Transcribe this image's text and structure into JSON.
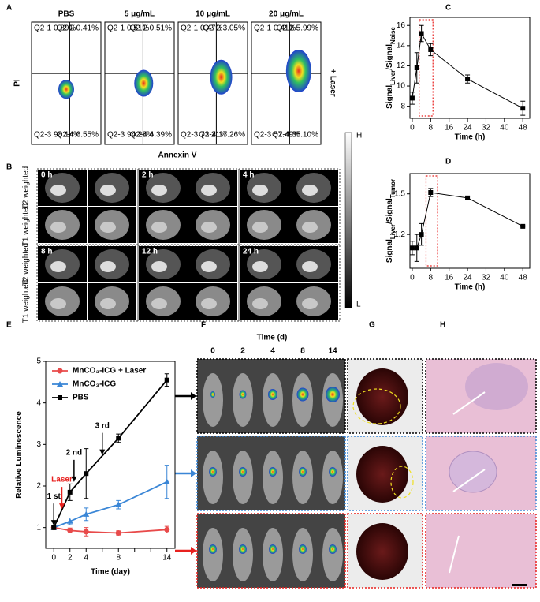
{
  "panel_labels": [
    "A",
    "B",
    "C",
    "D",
    "E",
    "F",
    "G",
    "H"
  ],
  "flow": {
    "groups": [
      {
        "name": "PBS",
        "quadrants": [
          "Q2-1 0.89%",
          "Q2-2 0.41%",
          "Q2-3 98.14%",
          "Q2-4 0.55%"
        ]
      },
      {
        "name": "5 μg/mL",
        "quadrants": [
          "Q2-1 0.51%",
          "Q2-2 0.51%",
          "Q2-3 94.28%",
          "Q2-4 4.39%"
        ]
      },
      {
        "name": "10 μg/mL",
        "quadrants": [
          "Q2-1 0.47%",
          "Q2-2 3.05%",
          "Q2-3 73.21%",
          "Q2-4 17.26%"
        ]
      },
      {
        "name": "20 μg/mL",
        "quadrants": [
          "Q2-1 0.41%",
          "Q2-2 5.99%",
          "Q2-3 57.49%",
          "Q2-4 35.10%"
        ]
      }
    ],
    "ylabel": "PI",
    "xlabel": "Annexin V",
    "side_label": "+ Laser"
  },
  "mri": {
    "rows": [
      "T2 weighted",
      "T1 weighted"
    ],
    "times": [
      "0 h",
      "2 h",
      "4 h",
      "8 h",
      "12 h",
      "24 h"
    ],
    "scale_high": "H",
    "scale_low": "L"
  },
  "bioluminescence": {
    "title": "Time (d)",
    "days": [
      "0",
      "2",
      "4",
      "8",
      "14"
    ]
  },
  "chart_data": [
    {
      "type": "line",
      "ylabel": [
        "Signal",
        "Liver",
        "/Signal",
        "Noise"
      ],
      "xlabel": "Time (h)",
      "x": [
        0,
        2,
        4,
        8,
        24,
        48
      ],
      "series": [
        {
          "color": "#000000",
          "marker": "square",
          "values": [
            8.8,
            11.8,
            15.2,
            13.6,
            10.7,
            7.8
          ],
          "errors": [
            0.6,
            1.5,
            0.8,
            0.6,
            0.4,
            0.7
          ]
        }
      ],
      "xlim": [
        -1,
        51
      ],
      "xticks": [
        0,
        8,
        16,
        24,
        32,
        40,
        48
      ],
      "ylim": [
        6.8,
        16.8
      ],
      "yticks": [
        8,
        10,
        12,
        14,
        16
      ],
      "highlight": {
        "x": [
          3,
          9
        ],
        "color": "#e8211f"
      }
    },
    {
      "type": "line",
      "ylabel": [
        "Signal",
        "Liver",
        "/Signal",
        "Tumor"
      ],
      "xlabel": "Time (h)",
      "x": [
        0,
        2,
        4,
        8,
        24,
        48
      ],
      "series": [
        {
          "color": "#000000",
          "marker": "square",
          "values": [
            1.1,
            1.1,
            1.2,
            1.51,
            1.47,
            1.26
          ],
          "errors": [
            0.05,
            0.1,
            0.08,
            0.03,
            0.01,
            0.005
          ]
        }
      ],
      "xlim": [
        -1,
        51
      ],
      "xticks": [
        0,
        8,
        16,
        24,
        32,
        40,
        48
      ],
      "ylim": [
        0.95,
        1.65
      ],
      "yticks": [
        1.2,
        1.5
      ],
      "highlight": {
        "x": [
          6,
          11
        ],
        "color": "#e8211f"
      }
    },
    {
      "type": "line",
      "ylabel": [
        "Relative Luminescence"
      ],
      "xlabel": "Time (day)",
      "x": [
        0,
        2,
        4,
        8,
        14
      ],
      "series": [
        {
          "name": "MnCO₃-ICG + Laser",
          "color": "#e84a4a",
          "marker": "circle",
          "values": [
            1,
            0.93,
            0.9,
            0.87,
            0.95
          ],
          "errors": [
            0.03,
            0.06,
            0.1,
            0.05,
            0.08
          ]
        },
        {
          "name": "MnCO₃-ICG",
          "color": "#3a86d6",
          "marker": "triangle",
          "values": [
            1,
            1.15,
            1.32,
            1.55,
            2.1
          ],
          "errors": [
            0.03,
            0.08,
            0.15,
            0.1,
            0.4
          ]
        },
        {
          "name": "PBS",
          "color": "#000000",
          "marker": "square",
          "values": [
            1,
            1.85,
            2.3,
            3.15,
            4.55
          ],
          "errors": [
            0.05,
            0.2,
            0.6,
            0.1,
            0.15
          ]
        }
      ],
      "xlim": [
        -1,
        15
      ],
      "xticks": [
        0,
        2,
        4,
        6,
        8,
        10,
        12,
        14
      ],
      "ylim": [
        0.5,
        5
      ],
      "yticks": [
        1,
        2,
        3,
        4,
        5
      ],
      "legend": "upper left",
      "annotations": [
        {
          "text": "1 st",
          "x": 0,
          "y": 1.75,
          "color": "#000000"
        },
        {
          "text": "Laser",
          "x": 1,
          "y": 2.15,
          "color": "#e8211f"
        },
        {
          "text": "2 nd",
          "x": 2.5,
          "y": 2.8,
          "color": "#000000"
        },
        {
          "text": "3 rd",
          "x": 6,
          "y": 3.45,
          "color": "#000000"
        }
      ]
    }
  ]
}
